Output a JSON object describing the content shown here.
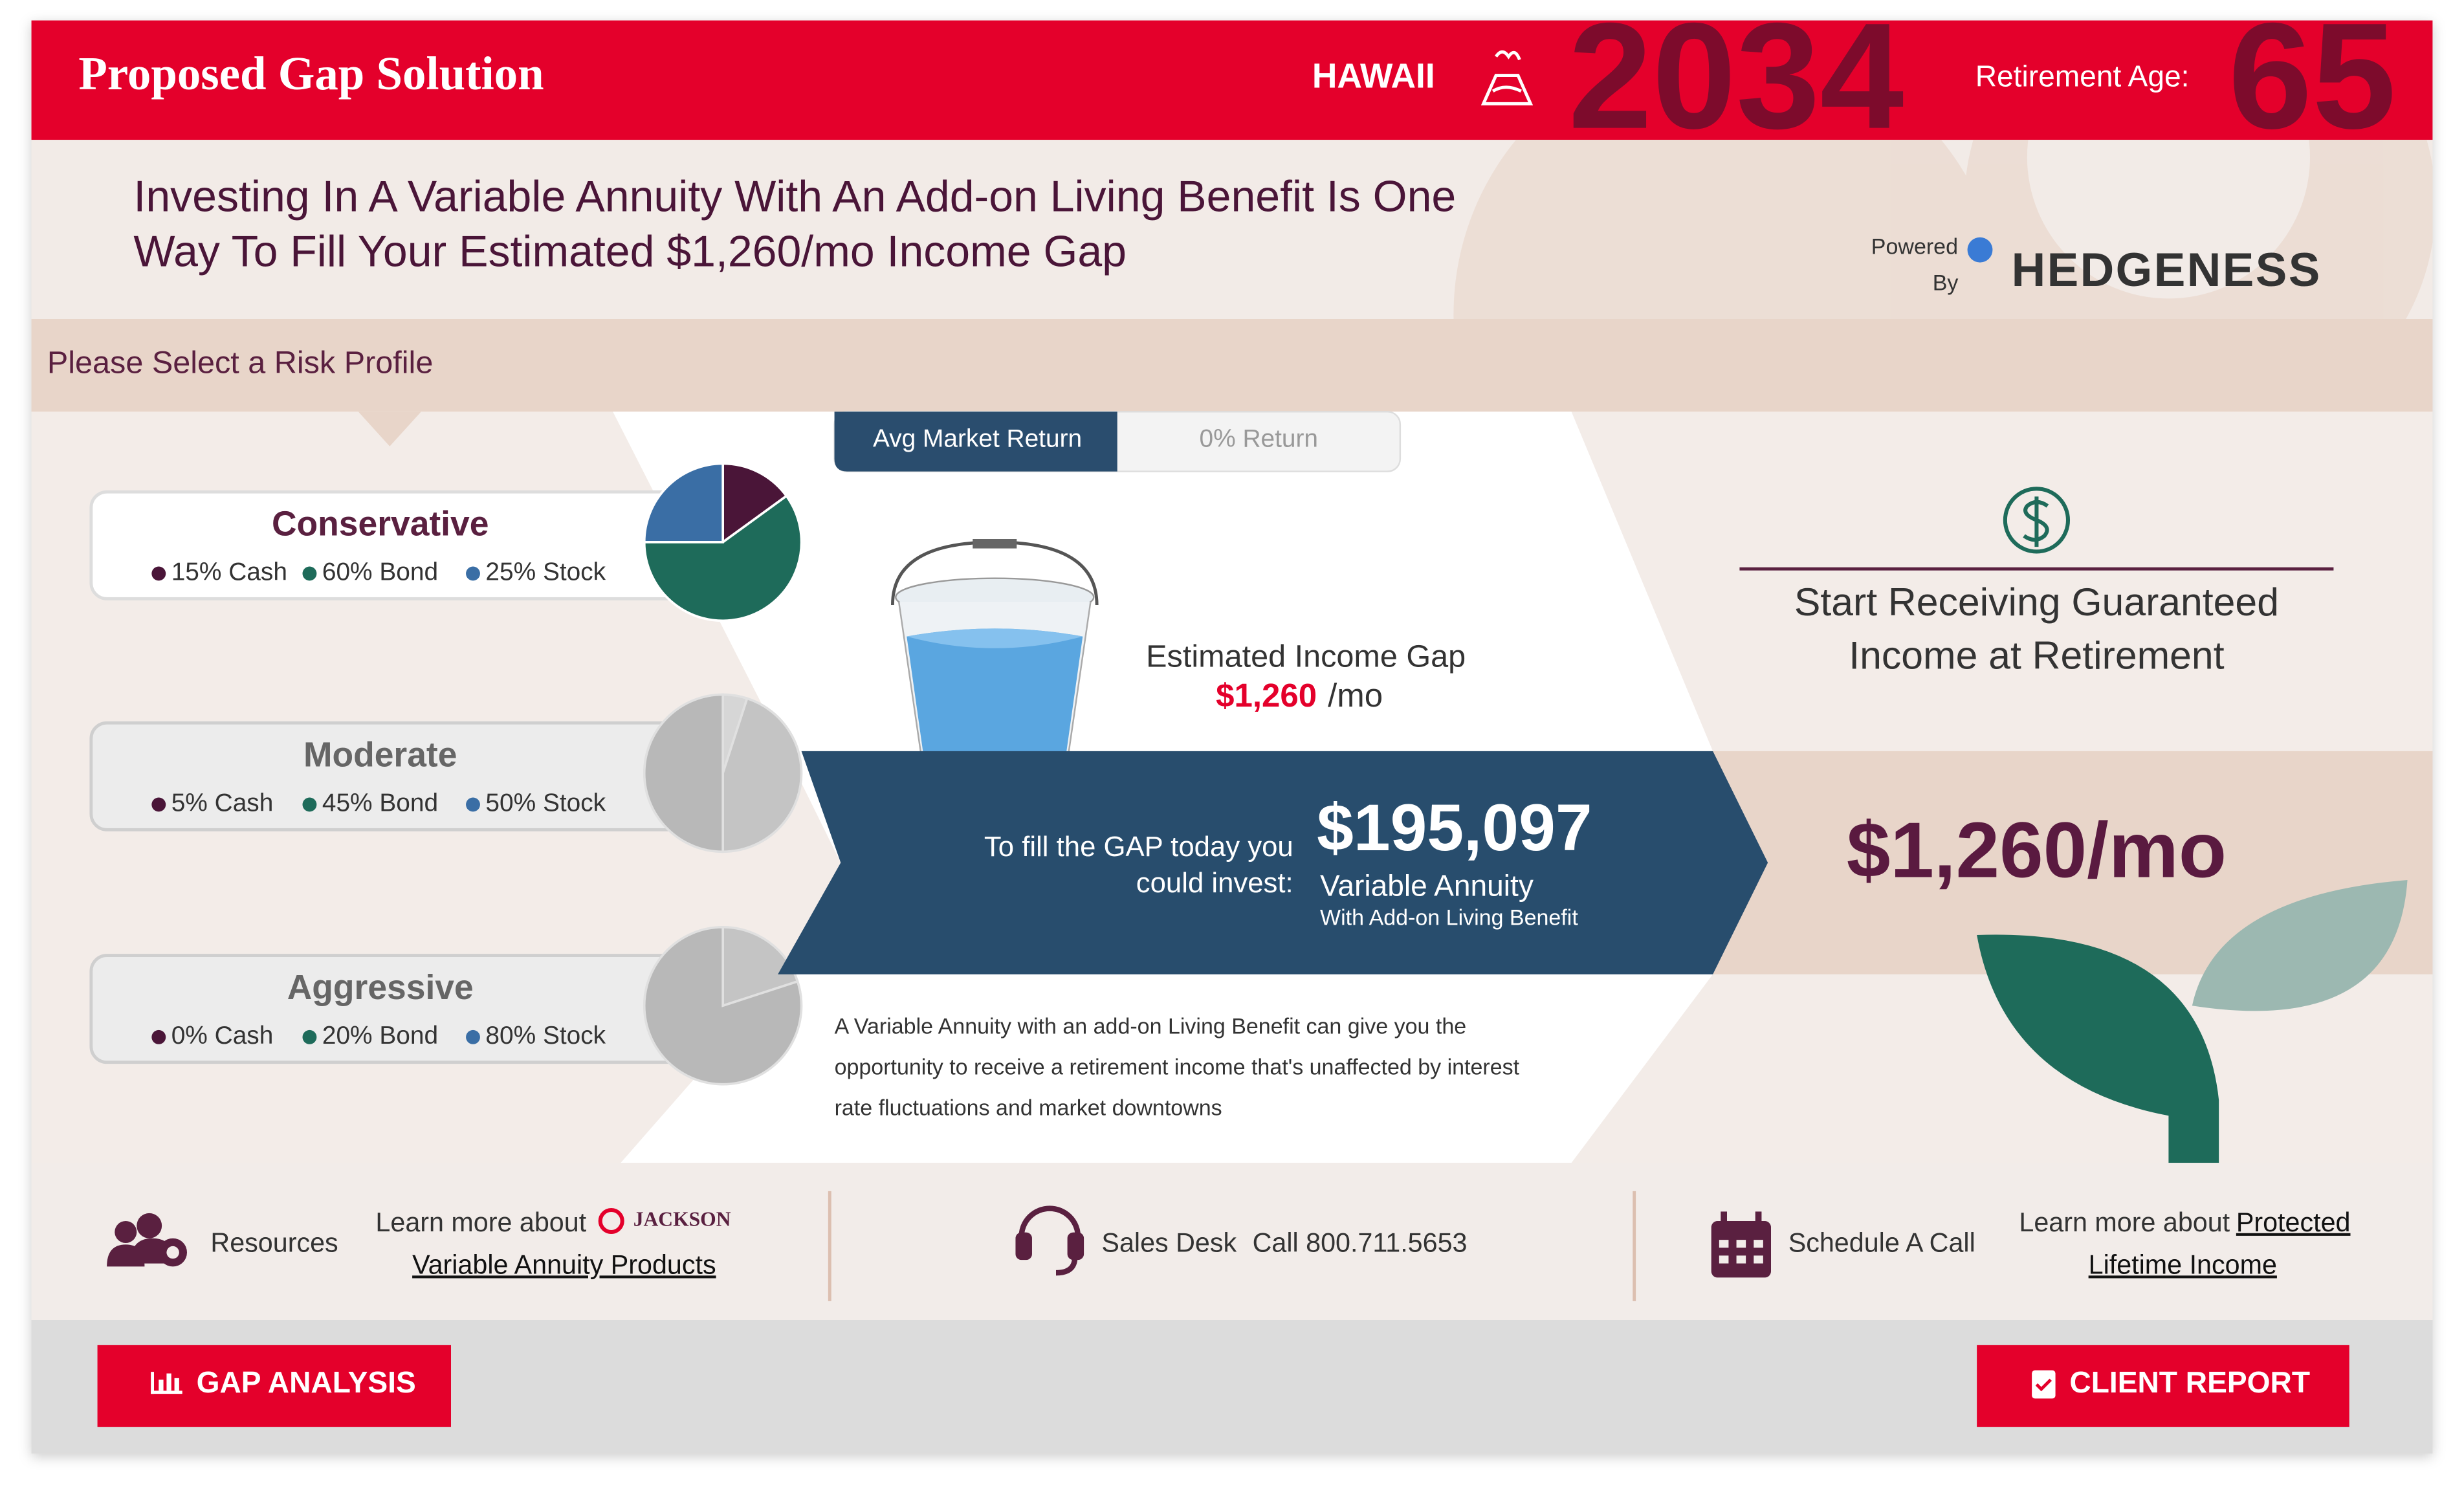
{
  "header": {
    "title": "Proposed Gap Solution",
    "region": "HAWAII",
    "year": "2034",
    "retirement_label": "Retirement Age:",
    "retirement_age": "65"
  },
  "headline": {
    "lines": [
      "Investing In A Variable Annuity With An Add-on Living Benefit Is One",
      "Way To Fill Your Estimated $1,260/mo Income Gap"
    ],
    "powered": "Powered",
    "by": "By",
    "brand": "HEDGENESS"
  },
  "risk_prompt": "Please Select a Risk Profile",
  "profiles": [
    {
      "name": "Conservative",
      "selected": true,
      "allocations": [
        {
          "value": 15,
          "label": "15% Cash",
          "color": "#4a1538"
        },
        {
          "value": 60,
          "label": "60% Bond",
          "color": "#1e6b5a"
        },
        {
          "value": 25,
          "label": "25% Stock",
          "color": "#3a6ea5"
        }
      ]
    },
    {
      "name": "Moderate",
      "selected": false,
      "allocations": [
        {
          "value": 5,
          "label": "5% Cash",
          "color": "#4a1538"
        },
        {
          "value": 45,
          "label": "45% Bond",
          "color": "#1e6b5a"
        },
        {
          "value": 50,
          "label": "50% Stock",
          "color": "#3a6ea5"
        }
      ]
    },
    {
      "name": "Aggressive",
      "selected": false,
      "allocations": [
        {
          "value": 0,
          "label": "0% Cash",
          "color": "#4a1538"
        },
        {
          "value": 20,
          "label": "20% Bond",
          "color": "#1e6b5a"
        },
        {
          "value": 80,
          "label": "80% Stock",
          "color": "#3a6ea5"
        }
      ]
    }
  ],
  "toggle": {
    "options": [
      "Avg Market Return",
      "0% Return"
    ]
  },
  "gap": {
    "label": "Estimated Income Gap",
    "amount": "$1,260",
    "unit": "/mo"
  },
  "invest": {
    "lead_lines": [
      "To fill the GAP today you",
      "could invest:"
    ],
    "amount": "$195,097",
    "product": "Variable Annuity",
    "product_note": "With Add-on Living Benefit"
  },
  "description": [
    "A Variable Annuity with an add-on Living Benefit can give you the",
    "opportunity to receive a retirement income that's unaffected by interest",
    "rate fluctuations and market downtowns"
  ],
  "outcome": {
    "lines": [
      "Start Receiving Guaranteed",
      "Income at Retirement"
    ],
    "amount": "$1,260/mo"
  },
  "footer": {
    "resources": "Resources",
    "learn": "Learn more about",
    "jackson": "JACKSON",
    "products": "Variable Annuity Products",
    "sales": "Sales Desk",
    "phone": "Call 800.711.5653",
    "schedule": "Schedule A Call",
    "learn2": "Learn more about",
    "protected": "Protected",
    "lifetime": "Lifetime Income"
  },
  "buttons": [
    "GAP ANALYSIS",
    "CLIENT REPORT"
  ]
}
